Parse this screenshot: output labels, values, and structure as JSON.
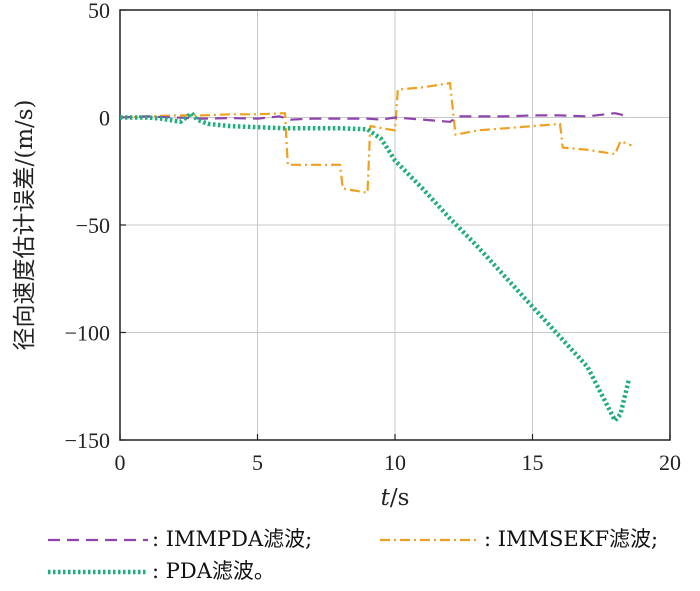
{
  "chart_data": {
    "type": "line",
    "ylabel": "径向速度估计误差/(m/s)",
    "xlabel_italic": "t",
    "xlabel_rest": "/s",
    "xlim": [
      0,
      20
    ],
    "ylim": [
      -150,
      50
    ],
    "xticks": [
      0,
      5,
      10,
      15,
      20
    ],
    "yticks": [
      50,
      0,
      -50,
      -100,
      -150
    ],
    "xtick_labels": [
      "0",
      "5",
      "10",
      "15",
      "20"
    ],
    "ytick_labels": [
      "50",
      "0",
      "−50",
      "−100",
      "−150"
    ],
    "grid": true,
    "legend_placement": "bottom",
    "series": [
      {
        "name": ": IMMPDA滤波;",
        "color": "#8e44ad",
        "style": "dashed",
        "x": [
          0,
          1,
          2,
          3,
          4,
          5,
          5.8,
          6.2,
          7,
          8,
          9,
          9.5,
          10,
          11,
          12,
          12.3,
          13,
          14,
          15,
          16,
          17,
          18,
          18.5
        ],
        "y": [
          0,
          0.5,
          0,
          -0.5,
          -0.3,
          -0.5,
          0.5,
          -1,
          -0.5,
          -0.5,
          -0.5,
          -1,
          0,
          -1,
          -2,
          0.5,
          0.5,
          0.5,
          1,
          1,
          0.5,
          2,
          0.5
        ]
      },
      {
        "name": ": IMMSEKF滤波;",
        "color": "#f0a020",
        "style": "dashdot",
        "x": [
          0,
          1,
          2,
          3,
          4,
          5,
          6,
          6.1,
          7,
          8,
          8.1,
          9,
          9.1,
          10,
          10.1,
          11,
          12,
          12.2,
          13,
          14,
          15,
          16,
          16.1,
          17,
          18,
          18.2,
          18.6
        ],
        "y": [
          0,
          0.5,
          1,
          1,
          1.5,
          1.5,
          2,
          -22,
          -22,
          -22,
          -33,
          -35,
          -4,
          -6,
          13,
          14,
          16,
          -8,
          -6,
          -5,
          -4,
          -3,
          -14,
          -15,
          -17,
          -11,
          -13
        ]
      },
      {
        "name": ": PDA滤波。",
        "color": "#1fae7a",
        "style": "dotted",
        "x": [
          0,
          1,
          1.5,
          2.2,
          2.6,
          2.8,
          3.2,
          4,
          5,
          6,
          7,
          8,
          9,
          9.5,
          10,
          11,
          12,
          13,
          14,
          15,
          16,
          17,
          18,
          18.2,
          18.5
        ],
        "y": [
          0,
          0,
          -0.5,
          -2,
          2,
          -1,
          -3,
          -4,
          -4.5,
          -5,
          -5,
          -5,
          -5.5,
          -10,
          -20,
          -33,
          -47,
          -60,
          -74,
          -88,
          -102,
          -116,
          -141,
          -138,
          -122
        ]
      }
    ]
  }
}
